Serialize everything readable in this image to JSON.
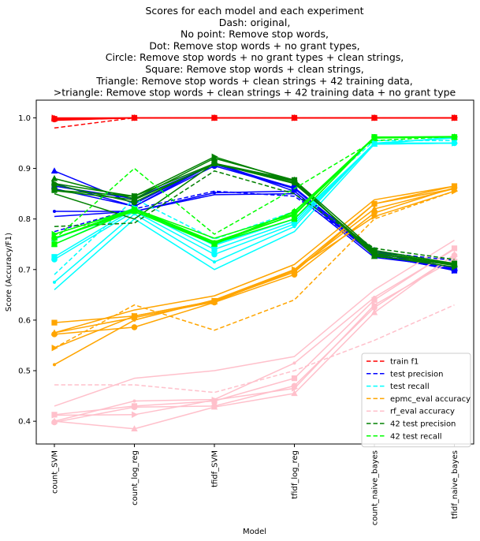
{
  "chart_data": {
    "type": "line",
    "title_lines": [
      "Scores for each model and each experiment",
      "Dash: original,",
      "No point: Remove stop words,",
      "Dot: Remove stop words + no grant types,",
      "Circle: Remove stop words + no grant types + clean strings,",
      "Square: Remove stop words + clean strings,",
      "Triangle: Remove stop words + clean strings + 42 training data,",
      ">triangle: Remove stop words + clean strings + 42 training data + no grant type"
    ],
    "xlabel": "Model",
    "ylabel": "Score (Accuracy/F1)",
    "categories": [
      "count_SVM",
      "count_log_reg",
      "tfidf_SVM",
      "tfidf_log_reg",
      "count_naive_bayes",
      "tfidf_naive_bayes"
    ],
    "ylim": [
      0.355,
      1.035
    ],
    "yticks": [
      "0.4",
      "0.5",
      "0.6",
      "0.7",
      "0.8",
      "0.9",
      "1.0"
    ],
    "legend_position": "lower-right",
    "legend": [
      {
        "label": "train f1",
        "color": "#ff0000"
      },
      {
        "label": "test precision",
        "color": "#0000ff"
      },
      {
        "label": "test recall",
        "color": "#00ffff"
      },
      {
        "label": "epmc_eval accuracy",
        "color": "#ffa500"
      },
      {
        "label": "rf_eval accuracy",
        "color": "#ffc0cb"
      },
      {
        "label": "42 test precision",
        "color": "#008000"
      },
      {
        "label": "42 test recall",
        "color": "#00ff00"
      }
    ],
    "series": [
      {
        "color": "#ff0000",
        "dash": true,
        "marker": "none",
        "values": [
          0.98,
          1.0,
          1.0,
          1.0,
          1.0,
          1.0
        ]
      },
      {
        "color": "#ff0000",
        "dash": false,
        "marker": "none",
        "values": [
          0.995,
          1.0,
          1.0,
          1.0,
          1.0,
          1.0
        ]
      },
      {
        "color": "#ff0000",
        "dash": false,
        "marker": "dot",
        "values": [
          0.996,
          1.0,
          1.0,
          1.0,
          1.0,
          1.0
        ]
      },
      {
        "color": "#ff0000",
        "dash": false,
        "marker": "circle",
        "values": [
          0.997,
          1.0,
          1.0,
          1.0,
          1.0,
          1.0
        ]
      },
      {
        "color": "#ff0000",
        "dash": false,
        "marker": "square",
        "values": [
          0.998,
          1.0,
          1.0,
          1.0,
          1.0,
          1.0
        ]
      },
      {
        "color": "#ff0000",
        "dash": false,
        "marker": "triangle",
        "values": [
          0.999,
          1.0,
          1.0,
          1.0,
          1.0,
          1.0
        ]
      },
      {
        "color": "#ff0000",
        "dash": false,
        "marker": "tri-right",
        "values": [
          1.0,
          1.0,
          1.0,
          1.0,
          1.0,
          1.0
        ]
      },
      {
        "color": "#0000ff",
        "dash": true,
        "marker": "none",
        "values": [
          0.775,
          0.82,
          0.855,
          0.845,
          0.735,
          0.718
        ]
      },
      {
        "color": "#0000ff",
        "dash": false,
        "marker": "none",
        "values": [
          0.805,
          0.815,
          0.848,
          0.85,
          0.724,
          0.705
        ]
      },
      {
        "color": "#0000ff",
        "dash": false,
        "marker": "dot",
        "values": [
          0.815,
          0.815,
          0.852,
          0.855,
          0.728,
          0.7
        ]
      },
      {
        "color": "#0000ff",
        "dash": false,
        "marker": "circle",
        "values": [
          0.86,
          0.825,
          0.905,
          0.86,
          0.73,
          0.7
        ]
      },
      {
        "color": "#0000ff",
        "dash": false,
        "marker": "square",
        "values": [
          0.865,
          0.84,
          0.908,
          0.862,
          0.735,
          0.698
        ]
      },
      {
        "color": "#0000ff",
        "dash": false,
        "marker": "triangle",
        "values": [
          0.895,
          0.83,
          0.91,
          0.86,
          0.738,
          0.702
        ]
      },
      {
        "color": "#0000ff",
        "dash": false,
        "marker": "tri-right",
        "values": [
          0.87,
          0.825,
          0.91,
          0.855,
          0.73,
          0.698
        ]
      },
      {
        "color": "#00ffff",
        "dash": true,
        "marker": "none",
        "values": [
          0.69,
          0.84,
          0.76,
          0.815,
          0.955,
          0.955
        ]
      },
      {
        "color": "#00ffff",
        "dash": false,
        "marker": "none",
        "values": [
          0.66,
          0.8,
          0.7,
          0.775,
          0.948,
          0.95
        ]
      },
      {
        "color": "#00ffff",
        "dash": false,
        "marker": "dot",
        "values": [
          0.675,
          0.81,
          0.715,
          0.785,
          0.95,
          0.95
        ]
      },
      {
        "color": "#00ffff",
        "dash": false,
        "marker": "circle",
        "values": [
          0.72,
          0.815,
          0.73,
          0.79,
          0.95,
          0.95
        ]
      },
      {
        "color": "#00ffff",
        "dash": false,
        "marker": "square",
        "values": [
          0.725,
          0.82,
          0.74,
          0.795,
          0.95,
          0.96
        ]
      },
      {
        "color": "#00ffff",
        "dash": false,
        "marker": "triangle",
        "values": [
          0.75,
          0.82,
          0.75,
          0.8,
          0.948,
          0.962
        ]
      },
      {
        "color": "#00ffff",
        "dash": false,
        "marker": "tri-right",
        "values": [
          0.76,
          0.822,
          0.748,
          0.8,
          0.948,
          0.95
        ]
      },
      {
        "color": "#ffa500",
        "dash": true,
        "marker": "none",
        "values": [
          0.545,
          0.63,
          0.58,
          0.64,
          0.8,
          0.855
        ]
      },
      {
        "color": "#ffa500",
        "dash": false,
        "marker": "none",
        "values": [
          0.575,
          0.62,
          0.648,
          0.71,
          0.838,
          0.865
        ]
      },
      {
        "color": "#ffa500",
        "dash": false,
        "marker": "dot",
        "values": [
          0.512,
          0.6,
          0.64,
          0.7,
          0.83,
          0.86
        ]
      },
      {
        "color": "#ffa500",
        "dash": false,
        "marker": "circle",
        "values": [
          0.572,
          0.586,
          0.635,
          0.69,
          0.812,
          0.862
        ]
      },
      {
        "color": "#ffa500",
        "dash": false,
        "marker": "square",
        "values": [
          0.595,
          0.608,
          0.638,
          0.695,
          0.83,
          0.865
        ]
      },
      {
        "color": "#ffa500",
        "dash": false,
        "marker": "triangle",
        "values": [
          0.575,
          0.605,
          0.636,
          0.698,
          0.82,
          0.86
        ]
      },
      {
        "color": "#ffa500",
        "dash": false,
        "marker": "tri-right",
        "values": [
          0.545,
          0.608,
          0.638,
          0.7,
          0.805,
          0.855
        ]
      },
      {
        "color": "#ffc0cb",
        "dash": true,
        "marker": "none",
        "values": [
          0.472,
          0.472,
          0.457,
          0.5,
          0.56,
          0.63
        ]
      },
      {
        "color": "#ffc0cb",
        "dash": false,
        "marker": "none",
        "values": [
          0.43,
          0.485,
          0.5,
          0.528,
          0.66,
          0.758
        ]
      },
      {
        "color": "#ffc0cb",
        "dash": false,
        "marker": "dot",
        "values": [
          0.4,
          0.44,
          0.443,
          0.515,
          0.645,
          0.74
        ]
      },
      {
        "color": "#ffc0cb",
        "dash": false,
        "marker": "circle",
        "values": [
          0.398,
          0.428,
          0.43,
          0.47,
          0.625,
          0.728
        ]
      },
      {
        "color": "#ffc0cb",
        "dash": false,
        "marker": "square",
        "values": [
          0.413,
          0.43,
          0.44,
          0.485,
          0.64,
          0.742
        ]
      },
      {
        "color": "#ffc0cb",
        "dash": false,
        "marker": "triangle",
        "values": [
          0.4,
          0.385,
          0.428,
          0.455,
          0.615,
          0.73
        ]
      },
      {
        "color": "#ffc0cb",
        "dash": false,
        "marker": "tri-right",
        "values": [
          0.412,
          0.413,
          0.442,
          0.465,
          0.63,
          0.72
        ]
      },
      {
        "color": "#008000",
        "dash": true,
        "marker": "none",
        "values": [
          0.785,
          0.792,
          0.895,
          0.85,
          0.742,
          0.72
        ]
      },
      {
        "color": "#008000",
        "dash": false,
        "marker": "none",
        "values": [
          0.85,
          0.8,
          0.91,
          0.87,
          0.735,
          0.71
        ]
      },
      {
        "color": "#008000",
        "dash": false,
        "marker": "dot",
        "values": [
          0.856,
          0.838,
          0.908,
          0.875,
          0.73,
          0.712
        ]
      },
      {
        "color": "#008000",
        "dash": false,
        "marker": "circle",
        "values": [
          0.868,
          0.833,
          0.91,
          0.872,
          0.732,
          0.708
        ]
      },
      {
        "color": "#008000",
        "dash": false,
        "marker": "square",
        "values": [
          0.857,
          0.845,
          0.91,
          0.877,
          0.738,
          0.712
        ]
      },
      {
        "color": "#008000",
        "dash": false,
        "marker": "triangle",
        "values": [
          0.88,
          0.84,
          0.92,
          0.877,
          0.726,
          0.71
        ]
      },
      {
        "color": "#008000",
        "dash": false,
        "marker": "tri-right",
        "values": [
          0.87,
          0.845,
          0.923,
          0.875,
          0.728,
          0.705
        ]
      },
      {
        "color": "#00ff00",
        "dash": true,
        "marker": "none",
        "values": [
          0.76,
          0.9,
          0.77,
          0.86,
          0.955,
          0.963
        ]
      },
      {
        "color": "#00ff00",
        "dash": false,
        "marker": "none",
        "values": [
          0.77,
          0.82,
          0.762,
          0.81,
          0.962,
          0.963
        ]
      },
      {
        "color": "#00ff00",
        "dash": false,
        "marker": "dot",
        "values": [
          0.762,
          0.82,
          0.755,
          0.808,
          0.962,
          0.962
        ]
      },
      {
        "color": "#00ff00",
        "dash": false,
        "marker": "circle",
        "values": [
          0.762,
          0.818,
          0.752,
          0.814,
          0.962,
          0.962
        ]
      },
      {
        "color": "#00ff00",
        "dash": false,
        "marker": "square",
        "values": [
          0.75,
          0.818,
          0.752,
          0.8,
          0.962,
          0.962
        ]
      },
      {
        "color": "#00ff00",
        "dash": false,
        "marker": "triangle",
        "values": [
          0.762,
          0.815,
          0.75,
          0.815,
          0.96,
          0.962
        ]
      },
      {
        "color": "#00ff00",
        "dash": false,
        "marker": "tri-right",
        "values": [
          0.77,
          0.82,
          0.752,
          0.808,
          0.962,
          0.962
        ]
      }
    ]
  }
}
